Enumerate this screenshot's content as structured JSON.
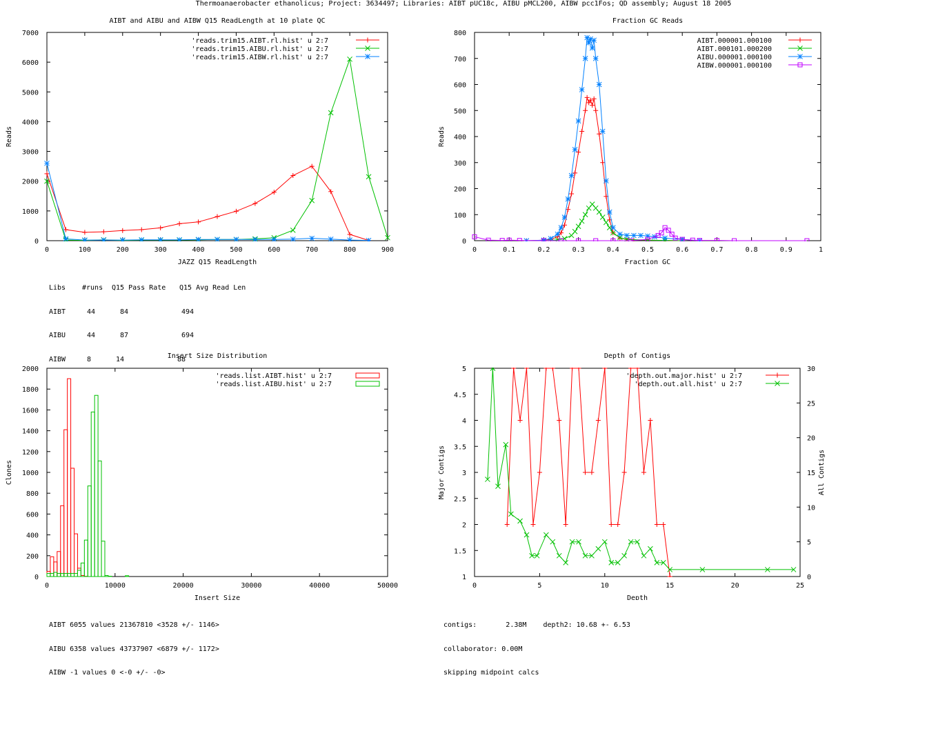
{
  "title": "Thermoanaerobacter ethanolicus; Project: 3634497; Libraries: AIBT pUC18c, AIBU pMCL200, AIBW pcc1Fos; QD assembly; August 18 2005",
  "colors": {
    "red": "#ff0000",
    "green": "#00c000",
    "blue": "#0080ff",
    "magenta": "#c000ff",
    "axis": "#000000"
  },
  "chart_data": [
    {
      "id": "readlength",
      "type": "line",
      "title": "AIBT and AIBU and AIBW Q15 ReadLength at 10 plate QC",
      "xlabel": "JAZZ Q15 ReadLength",
      "ylabel": "Reads",
      "xlim": [
        0,
        900
      ],
      "ylim": [
        0,
        7000
      ],
      "xticks": [
        0,
        100,
        200,
        300,
        400,
        500,
        600,
        700,
        800,
        900
      ],
      "yticks": [
        0,
        1000,
        2000,
        3000,
        4000,
        5000,
        6000,
        7000
      ],
      "series": [
        {
          "name": "'reads.trim15.AIBT.rl.hist' u 2:7",
          "color": "#ff0000",
          "marker": "plus",
          "x": [
            0,
            50,
            100,
            150,
            200,
            250,
            300,
            350,
            400,
            450,
            500,
            550,
            600,
            650,
            700,
            750,
            800,
            850
          ],
          "y": [
            2250,
            370,
            280,
            300,
            340,
            370,
            430,
            570,
            630,
            810,
            990,
            1250,
            1630,
            2190,
            2500,
            1650,
            210,
            10
          ]
        },
        {
          "name": "'reads.trim15.AIBU.rl.hist' u 2:7",
          "color": "#00c000",
          "marker": "x",
          "x": [
            0,
            50,
            100,
            150,
            200,
            250,
            300,
            350,
            400,
            450,
            500,
            550,
            600,
            650,
            700,
            750,
            800,
            850,
            900
          ],
          "y": [
            2000,
            20,
            10,
            30,
            10,
            20,
            20,
            20,
            30,
            40,
            40,
            60,
            100,
            350,
            1350,
            4300,
            6100,
            2150,
            100
          ]
        },
        {
          "name": "'reads.trim15.AIBW.rl.hist' u 2:7",
          "color": "#0080ff",
          "marker": "star",
          "x": [
            0,
            50,
            100,
            150,
            200,
            250,
            300,
            350,
            400,
            450,
            500,
            550,
            600,
            650,
            700,
            750,
            800,
            850
          ],
          "y": [
            2600,
            60,
            20,
            20,
            20,
            30,
            30,
            30,
            40,
            40,
            40,
            40,
            40,
            50,
            80,
            50,
            20,
            10
          ]
        }
      ],
      "stats_table": {
        "headers": [
          "Libs",
          "#runs",
          "Q15 Pass Rate",
          "Q15 Avg Read Len"
        ],
        "rows": [
          [
            "AIBT",
            "44",
            "84",
            "494"
          ],
          [
            "AIBU",
            "44",
            "87",
            "694"
          ],
          [
            "AIBW",
            "8",
            "14",
            "88"
          ]
        ]
      }
    },
    {
      "id": "gc",
      "type": "line",
      "title": "Fraction GC Reads",
      "xlabel": "Fraction GC",
      "ylabel": "Reads",
      "xlim": [
        0,
        1
      ],
      "ylim": [
        0,
        800
      ],
      "xticks": [
        0,
        0.1,
        0.2,
        0.3,
        0.4,
        0.5,
        0.6,
        0.7,
        0.8,
        0.9,
        1
      ],
      "yticks": [
        0,
        100,
        200,
        300,
        400,
        500,
        600,
        700,
        800
      ],
      "series": [
        {
          "name": "AIBT.000001.000100",
          "color": "#ff0000",
          "marker": "plus",
          "x": [
            0.15,
            0.2,
            0.22,
            0.24,
            0.25,
            0.26,
            0.27,
            0.28,
            0.29,
            0.3,
            0.31,
            0.32,
            0.325,
            0.33,
            0.335,
            0.34,
            0.345,
            0.35,
            0.36,
            0.37,
            0.38,
            0.39,
            0.4,
            0.42,
            0.44,
            0.46,
            0.5,
            0.55,
            0.6
          ],
          "y": [
            0,
            2,
            5,
            15,
            30,
            60,
            120,
            180,
            260,
            340,
            420,
            500,
            550,
            530,
            540,
            520,
            545,
            500,
            410,
            300,
            170,
            80,
            30,
            10,
            5,
            3,
            2,
            1,
            0
          ]
        },
        {
          "name": "AIBT.000101.000200",
          "color": "#00c000",
          "marker": "x",
          "x": [
            0.2,
            0.24,
            0.26,
            0.28,
            0.29,
            0.3,
            0.31,
            0.32,
            0.33,
            0.34,
            0.35,
            0.36,
            0.37,
            0.38,
            0.39,
            0.4,
            0.42,
            0.44,
            0.5,
            0.55,
            0.6
          ],
          "y": [
            0,
            3,
            8,
            20,
            35,
            55,
            75,
            100,
            125,
            140,
            125,
            110,
            90,
            70,
            50,
            30,
            12,
            5,
            2,
            1,
            0
          ]
        },
        {
          "name": "AIBU.000001.000100",
          "color": "#0080ff",
          "marker": "star",
          "x": [
            0.15,
            0.2,
            0.22,
            0.24,
            0.25,
            0.26,
            0.27,
            0.28,
            0.29,
            0.3,
            0.31,
            0.32,
            0.325,
            0.33,
            0.335,
            0.34,
            0.345,
            0.35,
            0.36,
            0.37,
            0.38,
            0.39,
            0.4,
            0.42,
            0.44,
            0.46,
            0.48,
            0.5,
            0.52,
            0.55,
            0.6,
            0.65
          ],
          "y": [
            0,
            2,
            8,
            25,
            50,
            90,
            160,
            250,
            350,
            460,
            580,
            700,
            780,
            760,
            775,
            740,
            770,
            700,
            600,
            420,
            230,
            110,
            50,
            25,
            20,
            20,
            20,
            18,
            15,
            10,
            5,
            0
          ]
        },
        {
          "name": "AIBW.000001.000100",
          "color": "#c000ff",
          "marker": "square",
          "x": [
            0,
            0.04,
            0.08,
            0.1,
            0.13,
            0.2,
            0.25,
            0.3,
            0.35,
            0.4,
            0.45,
            0.5,
            0.53,
            0.54,
            0.55,
            0.56,
            0.57,
            0.58,
            0.6,
            0.63,
            0.65,
            0.7,
            0.75,
            0.96
          ],
          "y": [
            15,
            2,
            1,
            2,
            1,
            0,
            0,
            0,
            0,
            0,
            0,
            5,
            20,
            30,
            50,
            40,
            25,
            10,
            5,
            2,
            1,
            1,
            0,
            0
          ]
        }
      ]
    },
    {
      "id": "insert",
      "type": "bar",
      "title": "Insert Size Distribution",
      "xlabel": "Insert Size",
      "ylabel": "Clones",
      "xlim": [
        0,
        50000
      ],
      "ylim": [
        0,
        2000
      ],
      "xticks": [
        0,
        10000,
        20000,
        30000,
        40000,
        50000
      ],
      "yticks": [
        0,
        200,
        400,
        600,
        800,
        1000,
        1200,
        1400,
        1600,
        1800,
        2000
      ],
      "binwidth": 500,
      "series": [
        {
          "name": "'reads.list.AIBT.hist' u 2:7",
          "color": "#ff0000",
          "x": [
            0,
            500,
            1000,
            1500,
            2000,
            2500,
            3000,
            3500,
            4000,
            4500,
            5000,
            5500
          ],
          "y": [
            50,
            190,
            140,
            240,
            680,
            1410,
            1900,
            1040,
            410,
            80,
            10,
            2
          ]
        },
        {
          "name": "'reads.list.AIBU.hist' u 2:7",
          "color": "#00c000",
          "x": [
            0,
            500,
            1000,
            1500,
            2000,
            2500,
            3000,
            3500,
            4000,
            4500,
            5000,
            5500,
            6000,
            6500,
            7000,
            7500,
            8000,
            8500,
            9000,
            11500
          ],
          "y": [
            30,
            30,
            40,
            30,
            30,
            30,
            30,
            30,
            30,
            60,
            130,
            350,
            870,
            1580,
            1740,
            1110,
            340,
            10,
            3,
            8
          ]
        }
      ],
      "stats": [
        "AIBT 6055 values 21367810 <3528 +/- 1146>",
        "AIBU 6358 values 43737907 <6879 +/- 1172>",
        "AIBW -1 values 0 <-0 +/- -0>"
      ]
    },
    {
      "id": "depth",
      "type": "line",
      "title": "Depth of Contigs",
      "xlabel": "Depth",
      "ylabel": "Major Contigs",
      "y2label": "All Contigs",
      "xlim": [
        0,
        25
      ],
      "ylim": [
        1,
        5
      ],
      "y2lim": [
        0,
        30
      ],
      "xticks": [
        0,
        5,
        10,
        15,
        20,
        25
      ],
      "yticks": [
        1,
        1.5,
        2,
        2.5,
        3,
        3.5,
        4,
        4.5,
        5
      ],
      "y2ticks": [
        0,
        5,
        10,
        15,
        20,
        25,
        30
      ],
      "series": [
        {
          "name": "'depth.out.major.hist' u 2:7",
          "color": "#ff0000",
          "marker": "plus",
          "axis": "y1",
          "x": [
            2.5,
            3.0,
            3.5,
            4.0,
            4.5,
            5.0,
            5.5,
            6.0,
            6.5,
            7.0,
            7.5,
            8.0,
            8.5,
            9.0,
            9.5,
            10.0,
            10.5,
            11.0,
            11.5,
            12.0,
            12.5,
            13.0,
            13.5,
            14.0,
            14.5,
            15.0
          ],
          "y": [
            2,
            5,
            4,
            5,
            2,
            3,
            5,
            5,
            4,
            2,
            5,
            5,
            3,
            3,
            4,
            5,
            2,
            2,
            3,
            5,
            5,
            3,
            4,
            2,
            2,
            1
          ]
        },
        {
          "name": "'depth.out.all.hist' u 2:7",
          "color": "#00c000",
          "marker": "x",
          "axis": "y2",
          "x": [
            1.0,
            1.4,
            1.8,
            2.4,
            2.8,
            3.5,
            4.0,
            4.4,
            4.8,
            5.5,
            6.0,
            6.5,
            7.0,
            7.5,
            8.0,
            8.5,
            9.0,
            9.5,
            10.0,
            10.5,
            11.0,
            11.5,
            12.0,
            12.5,
            13.0,
            13.5,
            14.0,
            14.5,
            15.0,
            17.5,
            22.5,
            24.5
          ],
          "y": [
            14,
            30,
            13,
            19,
            9,
            8,
            6,
            3,
            3,
            6,
            5,
            3,
            2,
            5,
            5,
            3,
            3,
            4,
            5,
            2,
            2,
            3,
            5,
            5,
            3,
            4,
            2,
            2,
            1,
            1,
            1,
            1
          ]
        }
      ],
      "stats": [
        "contigs:       2.38M    depth2: 10.68 +- 6.53",
        "collaborator: 0.00M",
        "skipping midpoint calcs"
      ]
    }
  ]
}
